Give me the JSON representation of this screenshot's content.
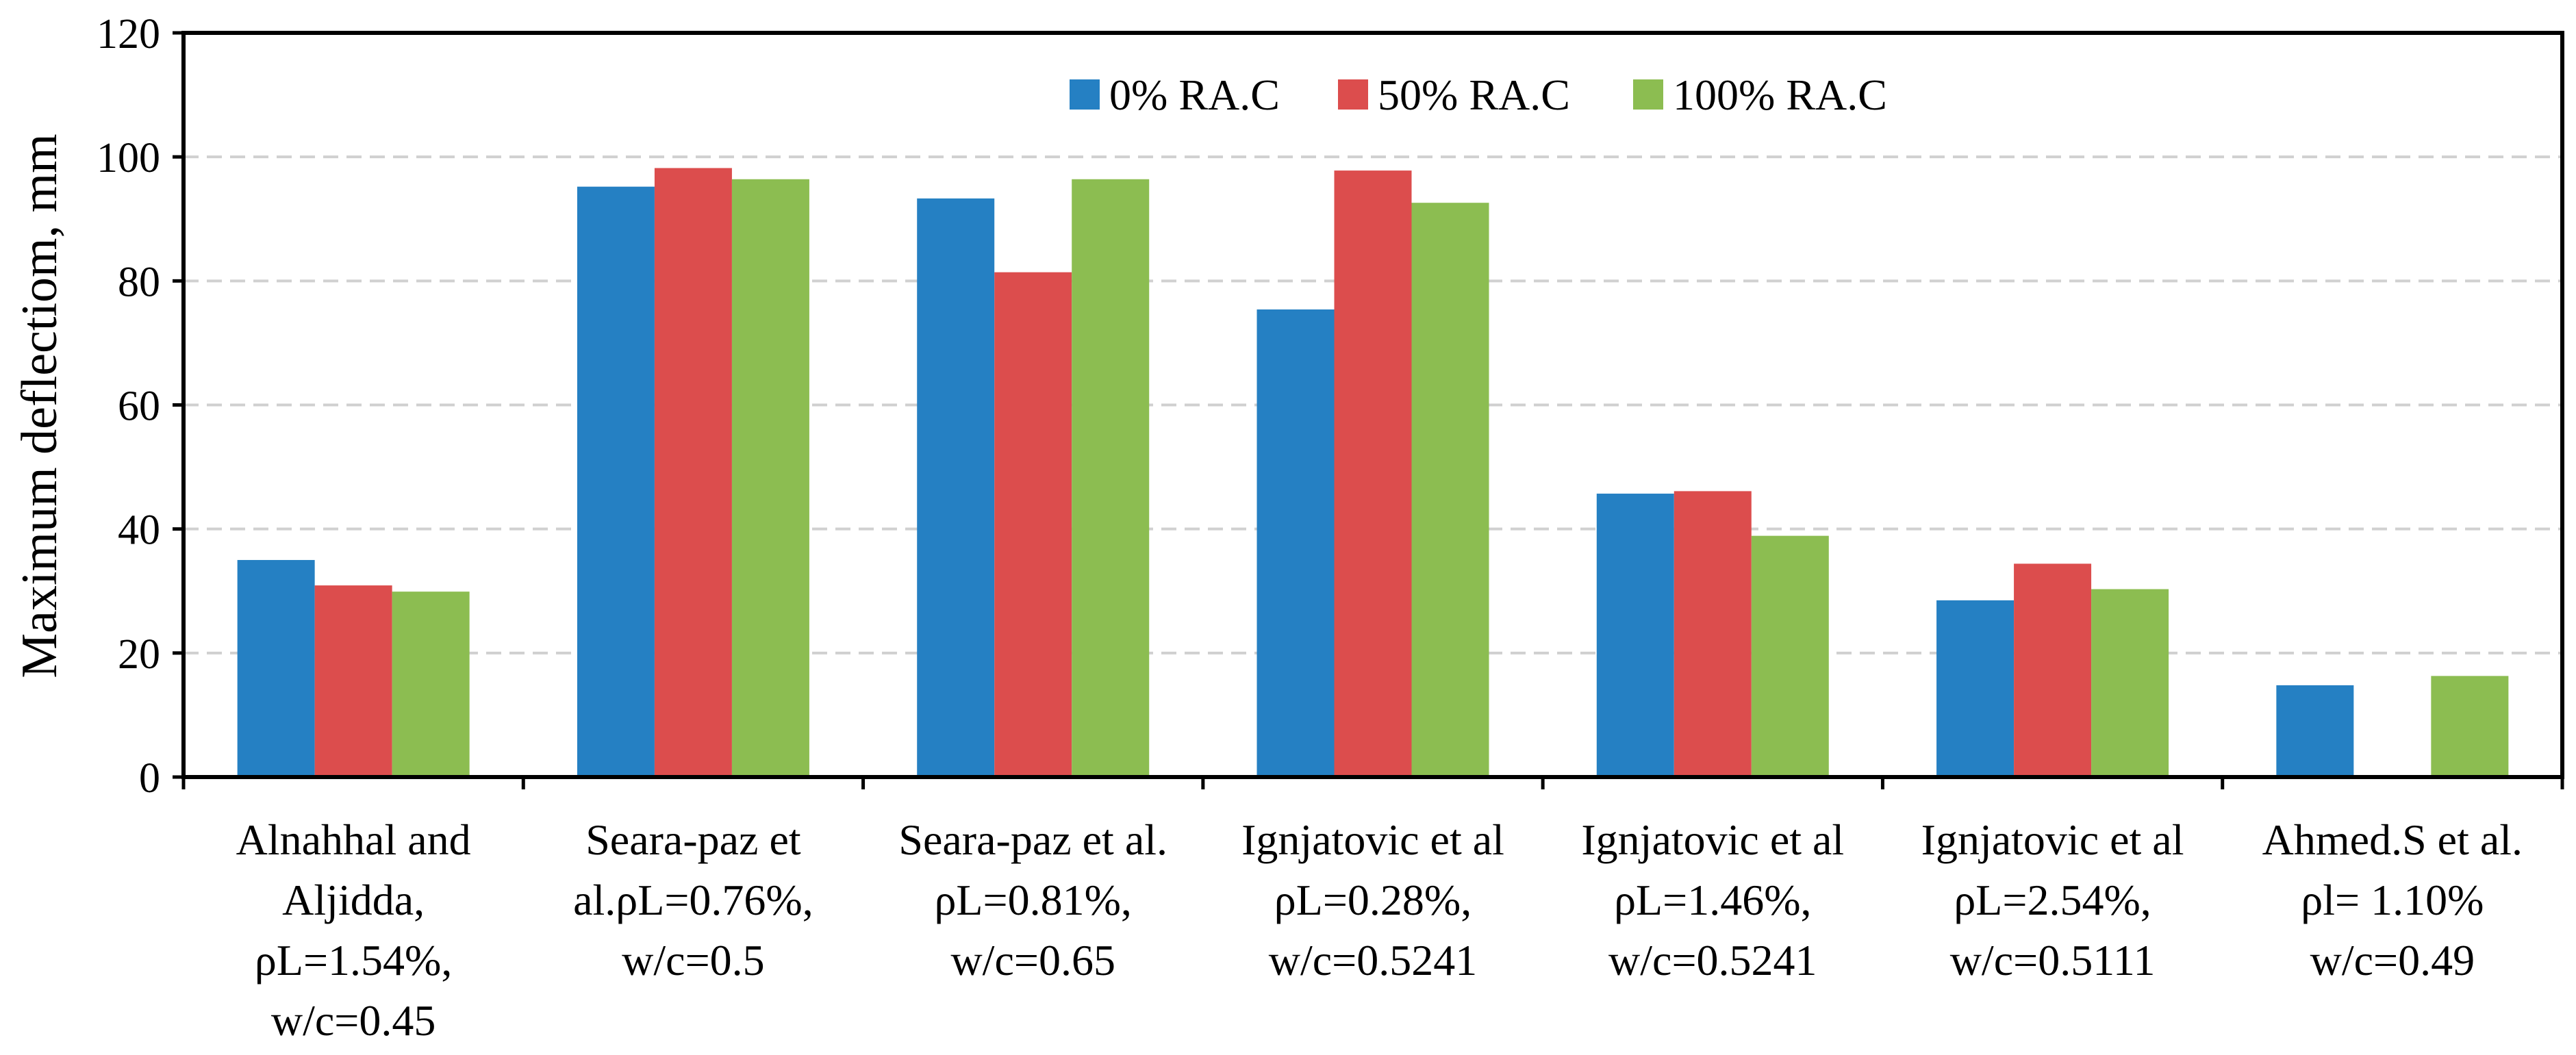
{
  "chart_data": {
    "type": "bar",
    "ylabel": "Maximum deflectiom, mm",
    "ylim": [
      0,
      120
    ],
    "yticks": [
      0,
      20,
      40,
      60,
      80,
      100,
      120
    ],
    "grid": "horizontal dashed",
    "legend_position": "top-center",
    "categories": [
      [
        "Alnahhal and",
        "Aljidda,",
        "ρL=1.54%,",
        "w/c=0.45"
      ],
      [
        "Seara-paz et",
        "al.ρL=0.76%,",
        "w/c=0.5"
      ],
      [
        "Seara-paz et al.",
        "ρL=0.81%,",
        "w/c=0.65"
      ],
      [
        "Ignjatovic et al",
        "ρL=0.28%,",
        "w/c=0.5241"
      ],
      [
        "Ignjatovic et al",
        "ρL=1.46%,",
        "w/c=0.5241"
      ],
      [
        "Ignjatovic et al",
        "ρL=2.54%,",
        "w/c=0.5111"
      ],
      [
        "Ahmed.S et al.",
        "ρl= 1.10%",
        "w/c=0.49"
      ]
    ],
    "series": [
      {
        "name": "0% RA.C",
        "color": "#2580c3",
        "values": [
          35,
          95.2,
          93.3,
          75.4,
          45.7,
          28.5,
          14.8
        ]
      },
      {
        "name": "50% RA.C",
        "color": "#dc4d4d",
        "values": [
          30.9,
          98.2,
          81.4,
          97.8,
          46.1,
          34.4,
          null
        ]
      },
      {
        "name": "100% RA.C",
        "color": "#8cbd51",
        "values": [
          29.9,
          96.4,
          96.4,
          92.6,
          38.9,
          30.3,
          16.3
        ]
      }
    ]
  }
}
